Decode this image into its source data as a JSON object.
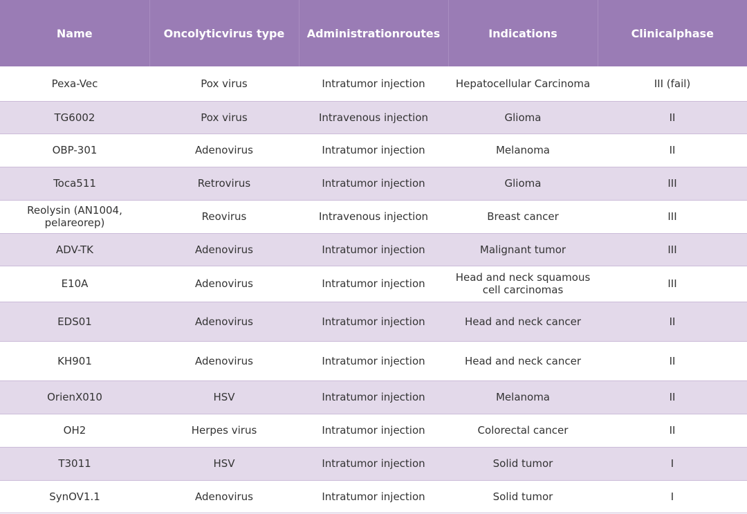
{
  "table": {
    "columns": [
      "Name",
      "Oncolyticvirus type",
      "Administrationroutes",
      "Indications",
      "Clinicalphase"
    ],
    "rows": [
      [
        "Pexa-Vec",
        "Pox virus",
        "Intratumor injection",
        "Hepatocellular Carcinoma",
        "III (fail)"
      ],
      [
        "TG6002",
        "Pox virus",
        "Intravenous injection",
        "Glioma",
        "II"
      ],
      [
        "OBP-301",
        "Adenovirus",
        "Intratumor injection",
        "Melanoma",
        "II"
      ],
      [
        "Toca511",
        "Retrovirus",
        "Intratumor injection",
        "Glioma",
        "III"
      ],
      [
        "Reolysin (AN1004, pelareorep)",
        "Reovirus",
        "Intravenous injection",
        "Breast cancer",
        "III"
      ],
      [
        "ADV-TK",
        "Adenovirus",
        "Intratumor injection",
        "Malignant tumor",
        "III"
      ],
      [
        "E10A",
        "Adenovirus",
        "Intratumor injection",
        "Head and neck squamous cell carcinomas",
        "III"
      ],
      [
        "EDS01",
        "Adenovirus",
        "Intratumor injection",
        "Head and neck cancer",
        "II"
      ],
      [
        "KH901",
        "Adenovirus",
        "Intratumor injection",
        "Head and neck cancer",
        "II"
      ],
      [
        "OrienX010",
        "HSV",
        "Intratumor injection",
        "Melanoma",
        "II"
      ],
      [
        "OH2",
        "Herpes virus",
        "Intratumor injection",
        "Colorectal cancer",
        "II"
      ],
      [
        "T3011",
        "HSV",
        "Intratumor injection",
        "Solid tumor",
        "I"
      ],
      [
        "SynOV1.1",
        "Adenovirus",
        "Intratumor injection",
        "Solid tumor",
        "I"
      ]
    ]
  }
}
